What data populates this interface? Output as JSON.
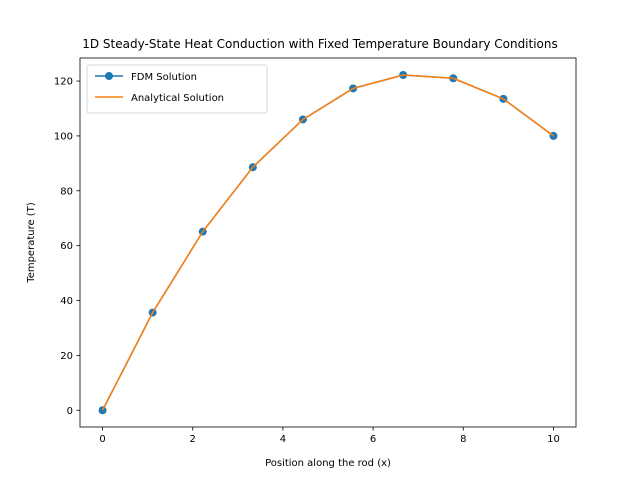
{
  "chart_data": {
    "type": "line",
    "title": "1D Steady-State Heat Conduction with Fixed Temperature Boundary Conditions",
    "xlabel": "Position along the rod (x)",
    "ylabel": "Temperature (T)",
    "xlim": [
      -0.5,
      10.5
    ],
    "ylim": [
      -6.1,
      128.4
    ],
    "xticks": [
      0,
      2,
      4,
      6,
      8,
      10
    ],
    "yticks": [
      0,
      20,
      40,
      60,
      80,
      100,
      120
    ],
    "grid": false,
    "legend_position": "top-left",
    "series": [
      {
        "name": "FDM Solution",
        "color": "#1f77b4",
        "marker": "circle",
        "x": [
          0,
          1.111,
          2.222,
          3.333,
          4.444,
          5.556,
          6.667,
          7.778,
          8.889,
          10
        ],
        "y": [
          0,
          35.6,
          65.1,
          88.6,
          106,
          117.3,
          122.2,
          121.0,
          113.5,
          100
        ]
      },
      {
        "name": "Analytical Solution",
        "color": "#ff7f0e",
        "marker": "none",
        "x": [
          0,
          1.111,
          2.222,
          3.333,
          4.444,
          5.556,
          6.667,
          7.778,
          8.889,
          10
        ],
        "y": [
          0,
          35.6,
          65.1,
          88.6,
          106,
          117.3,
          122.2,
          121.0,
          113.5,
          100
        ]
      }
    ]
  }
}
